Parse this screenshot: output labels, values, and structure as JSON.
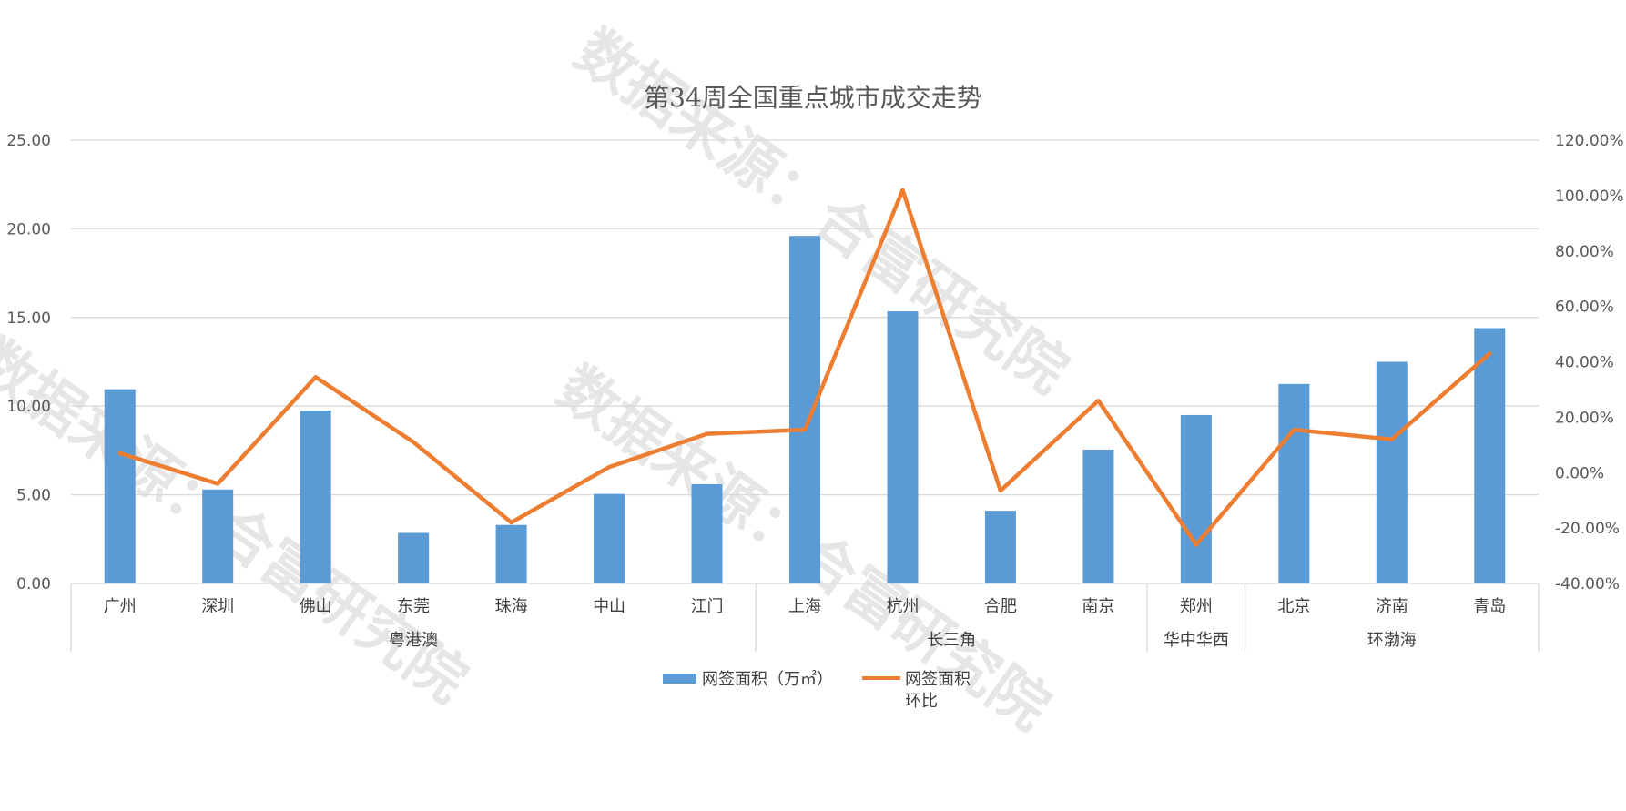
{
  "chart_data": {
    "type": "bar",
    "title": "第34周全国重点城市成交走势",
    "categories": [
      "广州",
      "深圳",
      "佛山",
      "东莞",
      "珠海",
      "中山",
      "江门",
      "上海",
      "杭州",
      "合肥",
      "南京",
      "郑州",
      "北京",
      "济南",
      "青岛"
    ],
    "groups": [
      {
        "name": "粤港澳",
        "start": 0,
        "end": 6
      },
      {
        "name": "长三角",
        "start": 7,
        "end": 10
      },
      {
        "name": "华中华西",
        "start": 11,
        "end": 11
      },
      {
        "name": "环渤海",
        "start": 12,
        "end": 14
      }
    ],
    "series": [
      {
        "name": "网签面积（万㎡）",
        "type": "bar",
        "axis": "left",
        "color": "#5b9bd5",
        "values": [
          10.95,
          5.3,
          9.75,
          2.85,
          3.3,
          5.05,
          5.6,
          19.6,
          15.35,
          4.1,
          7.55,
          9.5,
          11.25,
          12.5,
          14.4
        ]
      },
      {
        "name": "网签面积环比",
        "type": "line",
        "axis": "right",
        "color": "#ed7d31",
        "values": [
          7.0,
          -4.0,
          34.5,
          11.0,
          -18.0,
          2.0,
          14.0,
          15.5,
          102.0,
          -6.5,
          26.0,
          -26.0,
          15.5,
          12.0,
          43.0
        ]
      }
    ],
    "ylim_left": [
      0,
      25
    ],
    "yticks_left": [
      "0.00",
      "5.00",
      "10.00",
      "15.00",
      "20.00",
      "25.00"
    ],
    "ylim_right": [
      -40,
      120
    ],
    "yticks_right": [
      "-40.00%",
      "-20.00%",
      "0.00%",
      "20.00%",
      "40.00%",
      "60.00%",
      "80.00%",
      "100.00%",
      "120.00%"
    ],
    "grid": true,
    "legend_position": "bottom",
    "legend": {
      "bar_label": "网签面积（万㎡）",
      "line_label_1": "网签面积",
      "line_label_2": "环比"
    },
    "watermark": "数据来源：合富研究院"
  }
}
